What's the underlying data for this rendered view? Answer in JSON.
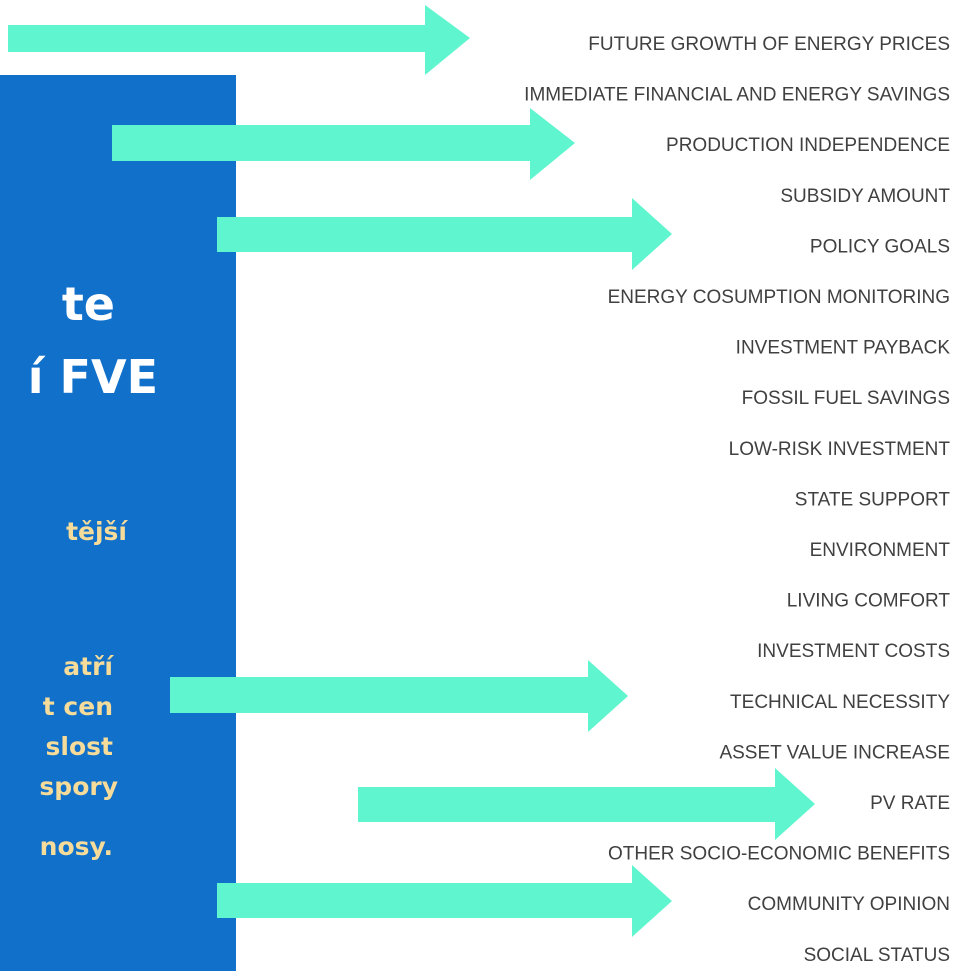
{
  "slide_panel": {
    "heading_lines": [
      "te",
      "í FVE"
    ],
    "body_lines": [
      "tější",
      "atří",
      "t cen",
      "slost",
      "spory",
      "nosy."
    ]
  },
  "factors": [
    "FUTURE GROWTH OF ENERGY PRICES",
    "IMMEDIATE FINANCIAL AND ENERGY SAVINGS",
    "PRODUCTION INDEPENDENCE",
    "SUBSIDY AMOUNT",
    "POLICY GOALS",
    "ENERGY COSUMPTION MONITORING",
    "INVESTMENT PAYBACK",
    "FOSSIL FUEL SAVINGS",
    "LOW-RISK INVESTMENT",
    "STATE SUPPORT",
    "ENVIRONMENT",
    "LIVING COMFORT",
    "INVESTMENT COSTS",
    "TECHNICAL NECESSITY",
    "ASSET VALUE INCREASE",
    "PV RATE",
    "OTHER SOCIO-ECONOMIC BENEFITS",
    "COMMUNITY OPINION",
    "SOCIAL STATUS"
  ]
}
